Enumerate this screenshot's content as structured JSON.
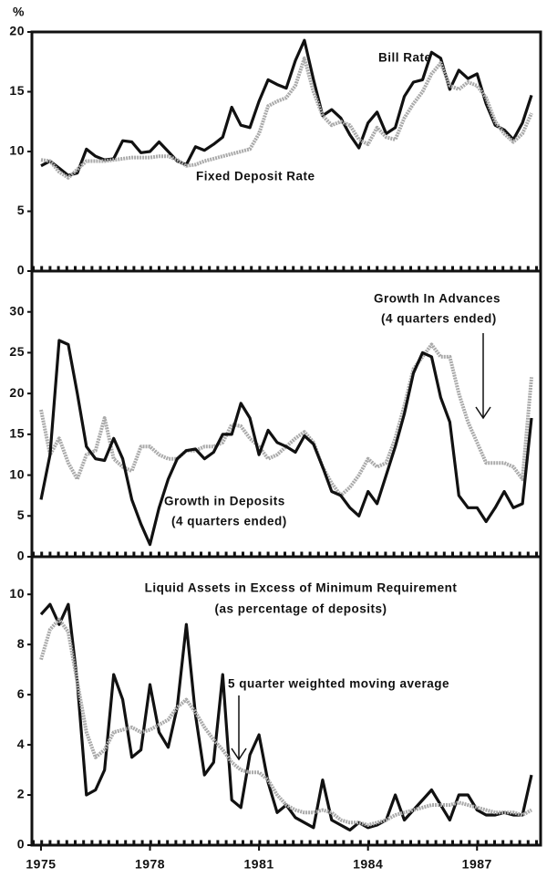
{
  "chart_data": [
    {
      "type": "line",
      "y_label": "%",
      "x": [
        1975,
        1975.25,
        1975.5,
        1975.75,
        1976,
        1976.25,
        1976.5,
        1976.75,
        1977,
        1977.25,
        1977.5,
        1977.75,
        1978,
        1978.25,
        1978.5,
        1978.75,
        1979,
        1979.25,
        1979.5,
        1979.75,
        1980,
        1980.25,
        1980.5,
        1980.75,
        1981,
        1981.25,
        1981.5,
        1981.75,
        1982,
        1982.25,
        1982.5,
        1982.75,
        1983,
        1983.25,
        1983.5,
        1983.75,
        1984,
        1984.25,
        1984.5,
        1984.75,
        1985,
        1985.25,
        1985.5,
        1985.75,
        1986,
        1986.25,
        1986.5,
        1986.75,
        1987,
        1987.25,
        1987.5,
        1987.75,
        1988,
        1988.25,
        1988.5
      ],
      "xlim": [
        1974.75,
        1988.75
      ],
      "ylim": [
        0,
        20
      ],
      "yticks": [
        0,
        5,
        10,
        15,
        20
      ],
      "series": [
        {
          "name": "Bill Rate",
          "color": "#111111",
          "values": [
            8.8,
            9.2,
            8.6,
            8.0,
            8.2,
            10.2,
            9.6,
            9.3,
            9.4,
            10.9,
            10.8,
            9.9,
            10.0,
            10.8,
            10.0,
            9.2,
            8.9,
            10.4,
            10.1,
            10.6,
            11.2,
            13.7,
            12.2,
            12.0,
            14.2,
            16.0,
            15.6,
            15.3,
            17.6,
            19.3,
            16.0,
            13.0,
            13.5,
            12.8,
            11.4,
            10.3,
            12.4,
            13.3,
            11.5,
            12.0,
            14.6,
            15.8,
            16.0,
            18.3,
            17.8,
            15.2,
            16.8,
            16.1,
            16.5,
            14.0,
            12.2,
            11.8,
            11.0,
            12.4,
            14.7
          ]
        },
        {
          "name": "Fixed Deposit Rate",
          "color": "#aaaaaa",
          "values": [
            9.3,
            9.2,
            8.3,
            7.8,
            8.5,
            9.2,
            9.2,
            9.2,
            9.3,
            9.4,
            9.5,
            9.5,
            9.5,
            9.6,
            9.6,
            9.3,
            8.8,
            8.9,
            9.2,
            9.4,
            9.6,
            9.8,
            10.0,
            10.2,
            11.5,
            13.8,
            14.2,
            14.5,
            15.5,
            17.8,
            15.0,
            13.0,
            12.2,
            12.5,
            12.2,
            11.0,
            10.6,
            12.0,
            11.2,
            11.0,
            12.8,
            14.0,
            15.0,
            16.5,
            17.4,
            15.5,
            15.2,
            15.8,
            15.5,
            14.5,
            12.5,
            11.5,
            10.8,
            11.5,
            13.2
          ]
        }
      ]
    },
    {
      "type": "line",
      "x": [
        1975,
        1975.25,
        1975.5,
        1975.75,
        1976,
        1976.25,
        1976.5,
        1976.75,
        1977,
        1977.25,
        1977.5,
        1977.75,
        1978,
        1978.25,
        1978.5,
        1978.75,
        1979,
        1979.25,
        1979.5,
        1979.75,
        1980,
        1980.25,
        1980.5,
        1980.75,
        1981,
        1981.25,
        1981.5,
        1981.75,
        1982,
        1982.25,
        1982.5,
        1982.75,
        1983,
        1983.25,
        1983.5,
        1983.75,
        1984,
        1984.25,
        1984.5,
        1984.75,
        1985,
        1985.25,
        1985.5,
        1985.75,
        1986,
        1986.25,
        1986.5,
        1986.75,
        1987,
        1987.25,
        1987.5,
        1987.75,
        1988,
        1988.25,
        1988.5
      ],
      "xlim": [
        1974.75,
        1988.75
      ],
      "ylim": [
        0,
        35
      ],
      "yticks": [
        0,
        5,
        10,
        15,
        20,
        25,
        30
      ],
      "series": [
        {
          "name": "Growth In Advances",
          "note": "(4 quarters ended)",
          "color": "#aaaaaa",
          "values": [
            18,
            12.5,
            14.5,
            11.5,
            9.5,
            12.5,
            13,
            17,
            12,
            11,
            10.5,
            13.5,
            13.5,
            12.5,
            12,
            12,
            13,
            13,
            13.5,
            13.5,
            14,
            16.2,
            16,
            14.5,
            13.5,
            12,
            12.5,
            13.5,
            14.5,
            15.3,
            14,
            11,
            9,
            7.5,
            8.5,
            10,
            12,
            11,
            11.5,
            14.5,
            18.5,
            23,
            24.5,
            26,
            24.5,
            24.5,
            20,
            16.5,
            14,
            11.5,
            11.5,
            11.5,
            11,
            9.5,
            22
          ]
        },
        {
          "name": "Growth in Deposits",
          "note": "(4 quarters ended)",
          "color": "#111111",
          "values": [
            7,
            12.5,
            26.5,
            26,
            20,
            13.5,
            12,
            11.8,
            14.5,
            12,
            7,
            4,
            1.5,
            6,
            9.5,
            12,
            13,
            13.2,
            12,
            12.8,
            15,
            15,
            18.8,
            17,
            12.5,
            15.5,
            14,
            13.5,
            12.8,
            14.8,
            13.8,
            11,
            8,
            7.5,
            6,
            5,
            8,
            6.5,
            10,
            13.5,
            17.5,
            22.5,
            25,
            24.5,
            19.5,
            16.5,
            7.5,
            6,
            6,
            4.3,
            6,
            8,
            6,
            6.5,
            17
          ]
        }
      ]
    },
    {
      "type": "line",
      "title": "Liquid Assets in Excess of Minimum Requirement",
      "subtitle": "(as percentage of deposits)",
      "x": [
        1975,
        1975.25,
        1975.5,
        1975.75,
        1976,
        1976.25,
        1976.5,
        1976.75,
        1977,
        1977.25,
        1977.5,
        1977.75,
        1978,
        1978.25,
        1978.5,
        1978.75,
        1979,
        1979.25,
        1979.5,
        1979.75,
        1980,
        1980.25,
        1980.5,
        1980.75,
        1981,
        1981.25,
        1981.5,
        1981.75,
        1982,
        1982.25,
        1982.5,
        1982.75,
        1983,
        1983.25,
        1983.5,
        1983.75,
        1984,
        1984.25,
        1984.5,
        1984.75,
        1985,
        1985.25,
        1985.5,
        1985.75,
        1986,
        1986.25,
        1986.5,
        1986.75,
        1987,
        1987.25,
        1987.5,
        1987.75,
        1988,
        1988.25,
        1988.5
      ],
      "xlim": [
        1974.75,
        1988.75
      ],
      "xticks": [
        1975,
        1978,
        1981,
        1984,
        1987
      ],
      "ylim": [
        0,
        11.5
      ],
      "yticks": [
        0,
        2,
        4,
        6,
        8,
        10
      ],
      "series": [
        {
          "name": "Liquid Assets",
          "color": "#111111",
          "values": [
            9.2,
            9.6,
            8.8,
            9.6,
            6.5,
            2,
            2.2,
            3,
            6.8,
            5.8,
            3.5,
            3.8,
            6.4,
            4.5,
            3.9,
            5.5,
            8.8,
            5.2,
            2.8,
            3.3,
            6.8,
            1.8,
            1.5,
            3.6,
            4.4,
            2.5,
            1.3,
            1.6,
            1.1,
            0.9,
            0.7,
            2.6,
            1.0,
            0.8,
            0.6,
            0.9,
            0.7,
            0.8,
            1.0,
            2.0,
            1.0,
            1.4,
            1.8,
            2.2,
            1.6,
            1.0,
            2.0,
            2.0,
            1.4,
            1.2,
            1.2,
            1.3,
            1.2,
            1.2,
            2.8
          ]
        },
        {
          "name": "5 quarter weighted moving average",
          "color": "#aaaaaa",
          "values": [
            7.4,
            8.6,
            9.0,
            8.5,
            6.5,
            4.5,
            3.5,
            3.8,
            4.5,
            4.6,
            4.7,
            4.5,
            4.6,
            4.8,
            5.0,
            5.5,
            5.8,
            5.3,
            4.7,
            4.2,
            3.8,
            3.3,
            3.0,
            2.9,
            2.9,
            2.6,
            2.0,
            1.6,
            1.4,
            1.3,
            1.3,
            1.4,
            1.3,
            1.0,
            0.9,
            0.9,
            0.8,
            0.9,
            1.0,
            1.2,
            1.3,
            1.4,
            1.5,
            1.6,
            1.6,
            1.6,
            1.7,
            1.6,
            1.5,
            1.4,
            1.3,
            1.3,
            1.3,
            1.2,
            1.4
          ]
        }
      ]
    }
  ]
}
